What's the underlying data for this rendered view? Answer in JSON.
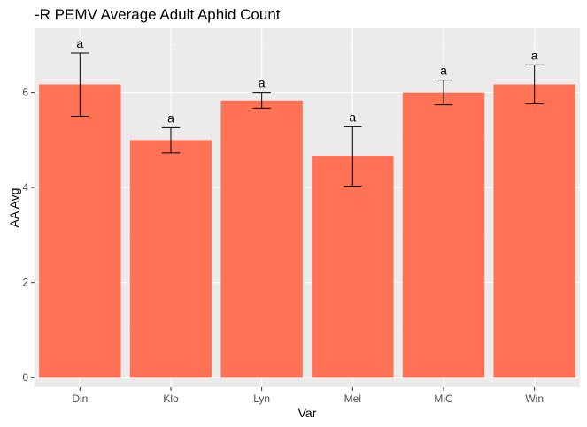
{
  "chart_data": {
    "type": "bar",
    "title": "-R PEMV Average Adult Aphid Count",
    "xlabel": "Var",
    "ylabel": "AA Avg",
    "categories": [
      "Din",
      "Klo",
      "Lyn",
      "Mel",
      "MiC",
      "Win"
    ],
    "values": [
      6.17,
      5.0,
      5.83,
      4.67,
      6.0,
      6.17
    ],
    "error_low": [
      5.5,
      4.73,
      5.67,
      4.03,
      5.74,
      5.76
    ],
    "error_high": [
      6.83,
      5.26,
      6.0,
      5.28,
      6.26,
      6.58
    ],
    "significance_labels": [
      "a",
      "a",
      "a",
      "a",
      "a",
      "a"
    ],
    "ylim": [
      -0.2,
      7.35
    ],
    "yticks": [
      0,
      2,
      4,
      6
    ],
    "grid": true,
    "colors": {
      "bar": "#ff7256",
      "panel_background": "#ebebeb",
      "grid_major": "#ffffff",
      "grid_minor": "#f5f5f5",
      "error_bar": "#000000"
    }
  }
}
